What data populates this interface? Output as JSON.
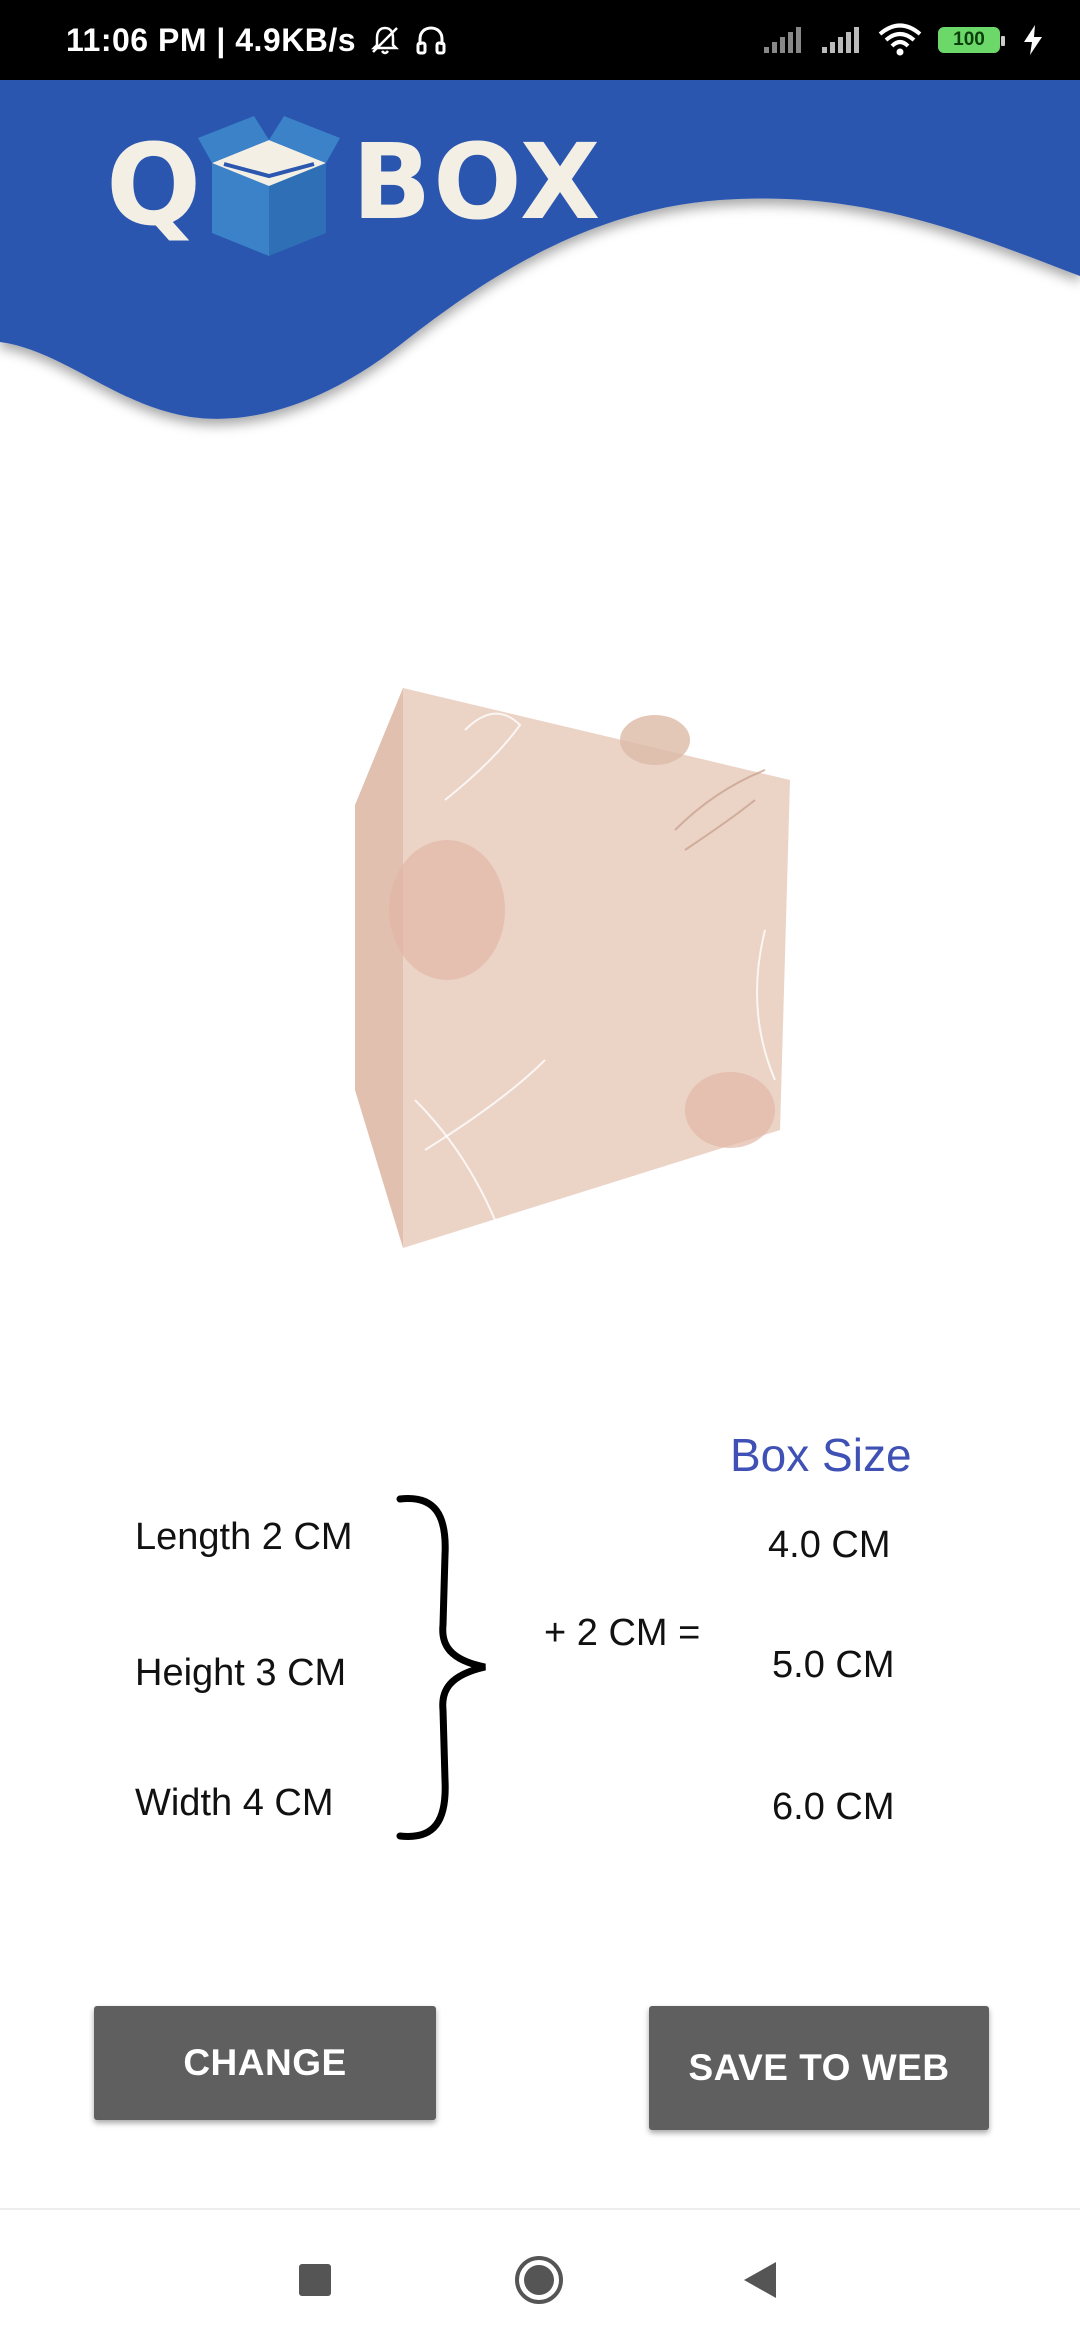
{
  "status_bar": {
    "time": "11:06 PM | 4.9KB/s",
    "battery": "100"
  },
  "logo": {
    "left": "Q",
    "right": "BOX"
  },
  "dimensions": {
    "length": "Length 2 CM",
    "height": "Height 3 CM",
    "width": "Width 4 CM",
    "plus": "+ 2 CM ="
  },
  "box_size": {
    "title": "Box Size",
    "values": [
      "4.0 CM",
      "5.0 CM",
      "6.0 CM"
    ]
  },
  "buttons": {
    "change": "CHANGE",
    "save": "SAVE TO WEB"
  },
  "colors": {
    "header_blue": "#2b57b0",
    "title_blue": "#3f51b5",
    "button_gray": "#5f5f5f",
    "box_face": "#ebd3c6"
  }
}
